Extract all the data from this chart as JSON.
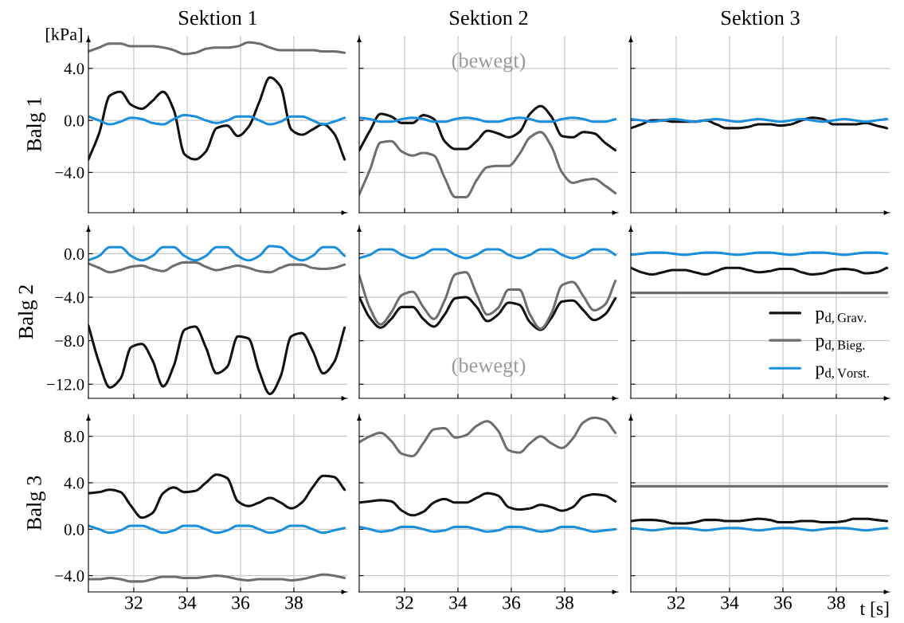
{
  "chart_data": [
    {
      "type": "line",
      "title": "Sektion 1",
      "ylabel": "Balg 1",
      "annotations": [
        "[kPa]"
      ],
      "x": [
        30.3,
        30.7,
        31.1,
        31.5,
        31.9,
        32.3,
        32.7,
        33.1,
        33.5,
        33.9,
        34.3,
        34.7,
        35.1,
        35.5,
        35.9,
        36.3,
        36.7,
        37.1,
        37.5,
        37.9,
        38.3,
        38.7,
        39.1,
        39.5,
        39.9
      ],
      "xlim": [
        30.3,
        40.0
      ],
      "xticks": [
        32,
        34,
        36,
        38
      ],
      "ylim": [
        -7.1,
        6.5
      ],
      "yticks": [
        {
          "value": -4,
          "label": "−4.0"
        },
        {
          "value": 0,
          "label": "0.0"
        },
        {
          "value": 4,
          "label": "4.0"
        }
      ],
      "grid": true,
      "tick_labels": "y",
      "series": [
        {
          "color": "#111111",
          "values": [
            -3.0,
            -1.0,
            1.9,
            2.2,
            1.2,
            0.9,
            1.5,
            2.2,
            0.8,
            -2.6,
            -3.0,
            -2.4,
            -0.6,
            -0.4,
            -1.2,
            -0.5,
            1.4,
            3.3,
            2.6,
            -0.7,
            -1.1,
            -0.7,
            -0.3,
            -1.0,
            -3.0
          ]
        },
        {
          "color": "#6e6e6e",
          "values": [
            5.3,
            5.6,
            5.9,
            5.9,
            5.7,
            5.7,
            5.7,
            5.6,
            5.4,
            5.1,
            5.2,
            5.5,
            5.6,
            5.6,
            5.7,
            6.0,
            5.9,
            5.6,
            5.4,
            5.4,
            5.4,
            5.4,
            5.3,
            5.3,
            5.2
          ]
        },
        {
          "color": "#1a8fdc",
          "values": [
            0.3,
            0.0,
            -0.3,
            -0.1,
            0.2,
            0.1,
            -0.2,
            -0.3,
            0.1,
            0.4,
            0.3,
            0.0,
            -0.2,
            0.0,
            0.3,
            0.3,
            0.0,
            -0.3,
            -0.1,
            0.3,
            0.3,
            0.0,
            -0.3,
            -0.1,
            0.2
          ]
        }
      ]
    },
    {
      "type": "line",
      "title": "Sektion 2",
      "annotations": [
        "(bewegt)"
      ],
      "x": [
        30.3,
        30.7,
        31.1,
        31.5,
        31.9,
        32.3,
        32.7,
        33.1,
        33.5,
        33.9,
        34.3,
        34.7,
        35.1,
        35.5,
        35.9,
        36.3,
        36.7,
        37.1,
        37.5,
        37.9,
        38.3,
        38.7,
        39.1,
        39.5,
        39.9
      ],
      "xlim": [
        30.3,
        40.0
      ],
      "xticks": [
        32,
        34,
        36,
        38
      ],
      "ylim": [
        -7.1,
        6.5
      ],
      "yticks": [
        -4,
        0,
        4
      ],
      "grid": true,
      "tick_labels": false,
      "series": [
        {
          "color": "#111111",
          "values": [
            -2.3,
            -0.8,
            0.5,
            0.3,
            -0.2,
            -0.2,
            0.4,
            0.1,
            -1.6,
            -2.2,
            -2.2,
            -1.6,
            -0.8,
            -1.0,
            -1.3,
            -0.9,
            0.5,
            1.1,
            0.3,
            -1.2,
            -1.3,
            -0.9,
            -1.0,
            -1.7,
            -2.3
          ]
        },
        {
          "color": "#6e6e6e",
          "values": [
            -5.7,
            -3.8,
            -1.7,
            -1.6,
            -2.4,
            -2.7,
            -2.5,
            -2.7,
            -4.4,
            -5.9,
            -5.9,
            -4.6,
            -3.6,
            -3.5,
            -3.5,
            -2.6,
            -1.3,
            -0.9,
            -2.0,
            -4.0,
            -4.8,
            -4.6,
            -4.5,
            -5.0,
            -5.6
          ]
        },
        {
          "color": "#1a8fdc",
          "values": [
            0.2,
            0.1,
            -0.1,
            -0.1,
            0.1,
            0.2,
            0.1,
            -0.1,
            -0.1,
            0.1,
            0.2,
            0.1,
            -0.1,
            -0.1,
            0.1,
            0.2,
            0.1,
            -0.1,
            -0.1,
            0.1,
            0.2,
            0.1,
            -0.1,
            -0.1,
            0.1
          ]
        }
      ]
    },
    {
      "type": "line",
      "title": "Sektion 3",
      "x": [
        30.3,
        30.7,
        31.1,
        31.5,
        31.9,
        32.3,
        32.7,
        33.1,
        33.5,
        33.9,
        34.3,
        34.7,
        35.1,
        35.5,
        35.9,
        36.3,
        36.7,
        37.1,
        37.5,
        37.9,
        38.3,
        38.7,
        39.1,
        39.5,
        39.9
      ],
      "xlim": [
        30.3,
        40.0
      ],
      "xticks": [
        32,
        34,
        36,
        38
      ],
      "ylim": [
        -7.1,
        6.5
      ],
      "yticks": [
        -4,
        0,
        4
      ],
      "grid": true,
      "tick_labels": false,
      "series": [
        {
          "color": "#111111",
          "values": [
            -0.6,
            -0.3,
            0.0,
            0.0,
            -0.1,
            -0.1,
            -0.1,
            0.0,
            -0.3,
            -0.6,
            -0.6,
            -0.5,
            -0.3,
            -0.3,
            -0.4,
            -0.3,
            0.0,
            0.2,
            0.1,
            -0.3,
            -0.3,
            -0.3,
            -0.2,
            -0.4,
            -0.6
          ]
        },
        {
          "color": "#1a8fdc",
          "values": [
            0.1,
            0.0,
            -0.1,
            0.0,
            0.1,
            0.0,
            -0.1,
            0.0,
            0.1,
            0.0,
            -0.1,
            0.0,
            0.1,
            0.0,
            -0.1,
            0.0,
            0.1,
            0.0,
            -0.1,
            0.0,
            0.1,
            0.0,
            -0.1,
            0.0,
            0.1
          ]
        }
      ]
    },
    {
      "type": "line",
      "ylabel": "Balg 2",
      "x": [
        30.3,
        30.7,
        31.1,
        31.5,
        31.9,
        32.3,
        32.7,
        33.1,
        33.5,
        33.9,
        34.3,
        34.7,
        35.1,
        35.5,
        35.9,
        36.3,
        36.7,
        37.1,
        37.5,
        37.9,
        38.3,
        38.7,
        39.1,
        39.5,
        39.9
      ],
      "xlim": [
        30.3,
        40.0
      ],
      "xticks": [
        32,
        34,
        36,
        38
      ],
      "ylim": [
        -13.3,
        2.6
      ],
      "yticks": [
        {
          "value": -12,
          "label": "−12.0"
        },
        {
          "value": -8,
          "label": "−8.0"
        },
        {
          "value": -4,
          "label": "−4.0"
        },
        {
          "value": 0,
          "label": "0.0"
        }
      ],
      "grid": true,
      "tick_labels": "y",
      "series": [
        {
          "color": "#111111",
          "values": [
            -6.6,
            -10.0,
            -12.3,
            -11.5,
            -8.6,
            -8.3,
            -9.8,
            -12.2,
            -10.3,
            -7.0,
            -6.7,
            -8.6,
            -11.0,
            -10.4,
            -7.6,
            -7.8,
            -10.8,
            -12.9,
            -11.3,
            -7.6,
            -7.3,
            -8.9,
            -11.0,
            -10.0,
            -6.8
          ]
        },
        {
          "color": "#6e6e6e",
          "values": [
            -0.9,
            -1.3,
            -1.7,
            -1.5,
            -1.2,
            -1.1,
            -1.4,
            -1.6,
            -1.1,
            -0.8,
            -0.8,
            -1.2,
            -1.5,
            -1.3,
            -1.1,
            -1.3,
            -1.6,
            -1.7,
            -1.3,
            -1.0,
            -1.0,
            -1.3,
            -1.4,
            -1.3,
            -1.0
          ]
        },
        {
          "color": "#1a8fdc",
          "values": [
            -0.6,
            -0.2,
            0.6,
            0.6,
            -0.2,
            -0.6,
            -0.2,
            0.6,
            0.6,
            -0.2,
            -0.6,
            -0.2,
            0.6,
            0.6,
            -0.2,
            -0.6,
            -0.2,
            0.7,
            0.6,
            -0.2,
            -0.6,
            -0.2,
            0.6,
            0.6,
            -0.2
          ]
        }
      ]
    },
    {
      "type": "line",
      "annotations": [
        "(bewegt)"
      ],
      "x": [
        30.3,
        30.7,
        31.1,
        31.5,
        31.9,
        32.3,
        32.7,
        33.1,
        33.5,
        33.9,
        34.3,
        34.7,
        35.1,
        35.5,
        35.9,
        36.3,
        36.7,
        37.1,
        37.5,
        37.9,
        38.3,
        38.7,
        39.1,
        39.5,
        39.9
      ],
      "xlim": [
        30.3,
        40.0
      ],
      "xticks": [
        32,
        34,
        36,
        38
      ],
      "ylim": [
        -13.3,
        2.6
      ],
      "yticks": [
        -12,
        -8,
        -4,
        0
      ],
      "grid": true,
      "tick_labels": false,
      "series": [
        {
          "color": "#111111",
          "values": [
            -4.0,
            -5.9,
            -6.8,
            -6.0,
            -4.9,
            -4.9,
            -6.0,
            -6.7,
            -5.6,
            -4.1,
            -4.0,
            -4.9,
            -6.2,
            -5.6,
            -4.5,
            -4.7,
            -6.3,
            -7.0,
            -5.9,
            -4.4,
            -4.3,
            -5.2,
            -6.1,
            -5.6,
            -4.1
          ]
        },
        {
          "color": "#6e6e6e",
          "values": [
            -2.0,
            -5.0,
            -6.5,
            -5.4,
            -3.8,
            -3.5,
            -4.9,
            -6.0,
            -4.3,
            -1.9,
            -1.7,
            -3.7,
            -5.6,
            -5.0,
            -3.3,
            -3.3,
            -5.6,
            -6.9,
            -5.5,
            -2.9,
            -2.6,
            -3.9,
            -5.2,
            -4.7,
            -2.5
          ]
        },
        {
          "color": "#1a8fdc",
          "values": [
            -0.4,
            -0.1,
            0.4,
            0.4,
            -0.1,
            -0.4,
            -0.1,
            0.4,
            0.4,
            -0.1,
            -0.4,
            -0.1,
            0.4,
            0.4,
            -0.1,
            -0.4,
            -0.1,
            0.4,
            0.4,
            -0.1,
            -0.4,
            -0.1,
            0.4,
            0.4,
            -0.1
          ]
        }
      ]
    },
    {
      "type": "line",
      "x": [
        30.3,
        30.7,
        31.1,
        31.5,
        31.9,
        32.3,
        32.7,
        33.1,
        33.5,
        33.9,
        34.3,
        34.7,
        35.1,
        35.5,
        35.9,
        36.3,
        36.7,
        37.1,
        37.5,
        37.9,
        38.3,
        38.7,
        39.1,
        39.5,
        39.9
      ],
      "xlim": [
        30.3,
        40.0
      ],
      "xticks": [
        32,
        34,
        36,
        38
      ],
      "ylim": [
        -13.3,
        2.6
      ],
      "yticks": [
        -12,
        -8,
        -4,
        0
      ],
      "grid": true,
      "tick_labels": false,
      "legend": "right",
      "series": [
        {
          "name": "p$_{d,Grav.}$",
          "color": "#111111",
          "values": [
            -1.3,
            -1.7,
            -1.9,
            -1.7,
            -1.5,
            -1.5,
            -1.7,
            -1.9,
            -1.6,
            -1.3,
            -1.3,
            -1.5,
            -1.7,
            -1.6,
            -1.4,
            -1.4,
            -1.7,
            -1.9,
            -1.8,
            -1.5,
            -1.4,
            -1.5,
            -1.8,
            -1.7,
            -1.3
          ]
        },
        {
          "name": "p$_{d,Bieg.}$",
          "color": "#6e6e6e",
          "values": [
            -3.6,
            -3.6,
            -3.6,
            -3.6,
            -3.6,
            -3.6,
            -3.6,
            -3.6,
            -3.6,
            -3.6,
            -3.6,
            -3.6,
            -3.6,
            -3.6,
            -3.6,
            -3.6,
            -3.6,
            -3.6,
            -3.6,
            -3.6,
            -3.6,
            -3.6,
            -3.6,
            -3.6,
            -3.6
          ]
        },
        {
          "name": "p$_{d,Vorst.}$",
          "color": "#1a8fdc",
          "values": [
            -0.1,
            0.0,
            0.1,
            0.1,
            0.0,
            -0.1,
            0.0,
            0.1,
            0.1,
            0.0,
            -0.1,
            0.0,
            0.1,
            0.1,
            0.0,
            -0.1,
            0.0,
            0.1,
            0.1,
            0.0,
            -0.1,
            0.0,
            0.1,
            0.1,
            0.0
          ]
        }
      ]
    },
    {
      "type": "line",
      "ylabel": "Balg 3",
      "x": [
        30.3,
        30.7,
        31.1,
        31.5,
        31.9,
        32.3,
        32.7,
        33.1,
        33.5,
        33.9,
        34.3,
        34.7,
        35.1,
        35.5,
        35.9,
        36.3,
        36.7,
        37.1,
        37.5,
        37.9,
        38.3,
        38.7,
        39.1,
        39.5,
        39.9
      ],
      "xlim": [
        30.3,
        40.0
      ],
      "xticks": [
        32,
        34,
        36,
        38
      ],
      "ylim": [
        -5.4,
        9.9
      ],
      "yticks": [
        {
          "value": -4,
          "label": "−4.0"
        },
        {
          "value": 0,
          "label": "0.0"
        },
        {
          "value": 4,
          "label": "4.0"
        },
        {
          "value": 8,
          "label": "8.0"
        }
      ],
      "grid": true,
      "series": [
        {
          "color": "#111111",
          "values": [
            3.1,
            3.2,
            3.4,
            3.2,
            2.0,
            1.0,
            1.4,
            3.1,
            3.6,
            3.2,
            3.3,
            4.0,
            4.7,
            4.4,
            2.4,
            2.0,
            2.3,
            2.7,
            2.3,
            1.8,
            2.3,
            3.6,
            4.6,
            4.5,
            3.4
          ]
        },
        {
          "color": "#6e6e6e",
          "values": [
            -4.3,
            -4.3,
            -4.2,
            -4.3,
            -4.5,
            -4.5,
            -4.3,
            -4.1,
            -4.1,
            -4.2,
            -4.2,
            -4.1,
            -4.0,
            -4.1,
            -4.3,
            -4.4,
            -4.3,
            -4.3,
            -4.3,
            -4.4,
            -4.3,
            -4.1,
            -3.9,
            -4.0,
            -4.2
          ]
        },
        {
          "color": "#1a8fdc",
          "values": [
            0.3,
            0.0,
            -0.3,
            -0.1,
            0.3,
            0.3,
            0.0,
            -0.3,
            -0.1,
            0.3,
            0.3,
            0.0,
            -0.3,
            -0.1,
            0.3,
            0.3,
            0.0,
            -0.3,
            -0.1,
            0.3,
            0.3,
            0.0,
            -0.3,
            -0.1,
            0.1
          ]
        }
      ]
    },
    {
      "type": "line",
      "x": [
        30.3,
        30.7,
        31.1,
        31.5,
        31.9,
        32.3,
        32.7,
        33.1,
        33.5,
        33.9,
        34.3,
        34.7,
        35.1,
        35.5,
        35.9,
        36.3,
        36.7,
        37.1,
        37.5,
        37.9,
        38.3,
        38.7,
        39.1,
        39.5,
        39.9
      ],
      "xlim": [
        30.3,
        40.0
      ],
      "xticks": [
        32,
        34,
        36,
        38
      ],
      "ylim": [
        -5.4,
        9.9
      ],
      "yticks": [
        -4,
        0,
        4,
        8
      ],
      "grid": true,
      "tick_labels": "x",
      "series": [
        {
          "color": "#111111",
          "values": [
            2.3,
            2.4,
            2.5,
            2.4,
            1.6,
            1.2,
            1.5,
            2.3,
            2.6,
            2.3,
            2.3,
            2.7,
            3.1,
            2.9,
            1.9,
            1.7,
            1.8,
            2.1,
            1.9,
            1.6,
            1.9,
            2.8,
            3.0,
            2.9,
            2.4
          ]
        },
        {
          "color": "#6e6e6e",
          "values": [
            7.5,
            8.0,
            8.3,
            7.6,
            6.5,
            6.3,
            7.4,
            8.6,
            8.7,
            7.9,
            8.1,
            8.9,
            9.3,
            8.5,
            6.8,
            6.6,
            7.4,
            8.0,
            7.4,
            7.0,
            7.8,
            9.2,
            9.6,
            9.4,
            8.3
          ]
        },
        {
          "color": "#1a8fdc",
          "values": [
            0.2,
            0.0,
            -0.2,
            -0.1,
            0.2,
            0.2,
            0.0,
            -0.2,
            -0.1,
            0.2,
            0.2,
            0.0,
            -0.2,
            -0.1,
            0.2,
            0.2,
            0.0,
            -0.2,
            -0.1,
            0.2,
            0.2,
            0.0,
            -0.2,
            -0.1,
            0.0
          ]
        }
      ]
    },
    {
      "type": "line",
      "xlabel": "t [s]",
      "x": [
        30.3,
        30.7,
        31.1,
        31.5,
        31.9,
        32.3,
        32.7,
        33.1,
        33.5,
        33.9,
        34.3,
        34.7,
        35.1,
        35.5,
        35.9,
        36.3,
        36.7,
        37.1,
        37.5,
        37.9,
        38.3,
        38.7,
        39.1,
        39.5,
        39.9
      ],
      "xlim": [
        30.3,
        40.0
      ],
      "xticks": [
        32,
        34,
        36,
        38
      ],
      "ylim": [
        -5.4,
        9.9
      ],
      "yticks": [
        -4,
        0,
        4,
        8
      ],
      "grid": true,
      "tick_labels": "x",
      "series": [
        {
          "color": "#111111",
          "values": [
            0.7,
            0.8,
            0.8,
            0.7,
            0.5,
            0.5,
            0.6,
            0.8,
            0.8,
            0.7,
            0.7,
            0.8,
            0.9,
            0.8,
            0.6,
            0.6,
            0.7,
            0.7,
            0.6,
            0.6,
            0.7,
            0.9,
            0.9,
            0.8,
            0.7
          ]
        },
        {
          "color": "#6e6e6e",
          "values": [
            3.7,
            3.7,
            3.7,
            3.7,
            3.7,
            3.7,
            3.7,
            3.7,
            3.7,
            3.7,
            3.7,
            3.7,
            3.7,
            3.7,
            3.7,
            3.7,
            3.7,
            3.7,
            3.7,
            3.7,
            3.7,
            3.7,
            3.7,
            3.7,
            3.7
          ]
        },
        {
          "color": "#1a8fdc",
          "values": [
            0.1,
            0.0,
            -0.1,
            0.0,
            0.1,
            0.1,
            0.0,
            -0.1,
            0.0,
            0.1,
            0.1,
            0.0,
            -0.1,
            0.0,
            0.1,
            0.1,
            0.0,
            -0.1,
            0.0,
            0.1,
            0.1,
            0.0,
            -0.1,
            0.0,
            0.1
          ]
        }
      ]
    }
  ]
}
